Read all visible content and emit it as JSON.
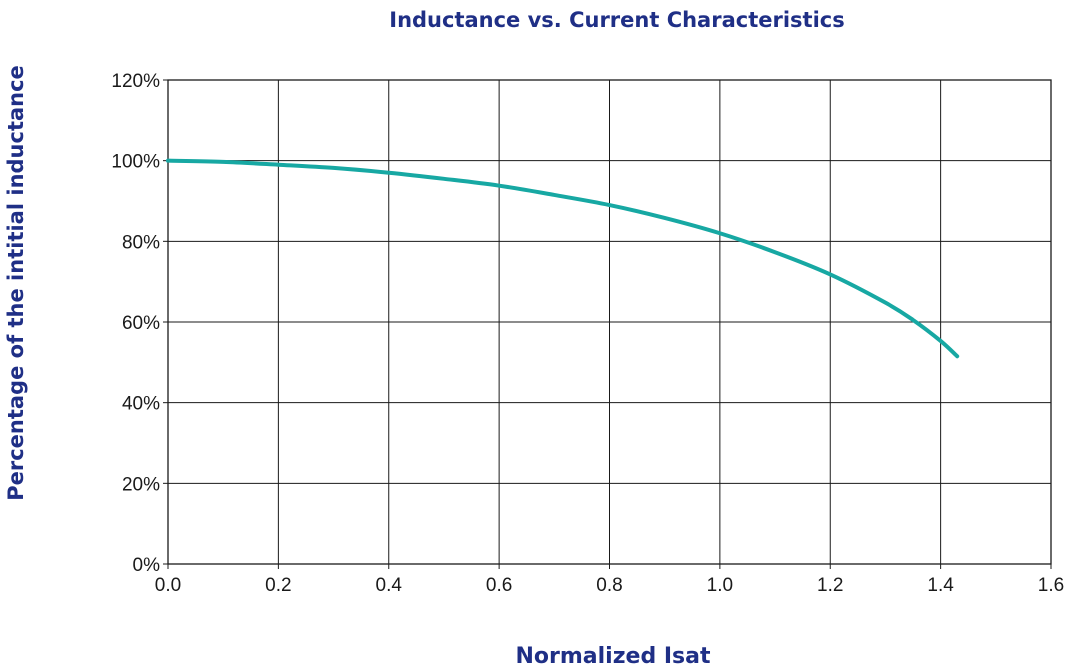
{
  "chart_data": {
    "type": "line",
    "title": "Inductance vs. Current Characteristics",
    "xlabel": "Normalized Isat",
    "ylabel": "Percentage of the intitial inductance",
    "xlim": [
      0.0,
      1.6
    ],
    "ylim": [
      0,
      120
    ],
    "xticks": [
      "0.0",
      "0.2",
      "0.4",
      "0.6",
      "0.8",
      "1.0",
      "1.2",
      "1.4",
      "1.6"
    ],
    "yticks": [
      "0%",
      "20%",
      "40%",
      "60%",
      "80%",
      "100%",
      "120%"
    ],
    "xtick_values": [
      0.0,
      0.2,
      0.4,
      0.6,
      0.8,
      1.0,
      1.2,
      1.4,
      1.6
    ],
    "ytick_values": [
      0,
      20,
      40,
      60,
      80,
      100,
      120
    ],
    "grid": true,
    "series": [
      {
        "color": "#17a8a3",
        "x": [
          0.0,
          0.1,
          0.2,
          0.3,
          0.4,
          0.5,
          0.6,
          0.7,
          0.8,
          0.9,
          1.0,
          1.1,
          1.2,
          1.3,
          1.35,
          1.4,
          1.43
        ],
        "y": [
          100,
          99.7,
          99.0,
          98.2,
          97.0,
          95.5,
          93.8,
          91.5,
          89.0,
          85.8,
          82.0,
          77.3,
          71.8,
          64.8,
          60.5,
          55.3,
          51.5
        ]
      }
    ]
  },
  "colors": {
    "title": "#1f2f86",
    "series_line": "#17a8a3",
    "grid": "#1a1a1a"
  }
}
